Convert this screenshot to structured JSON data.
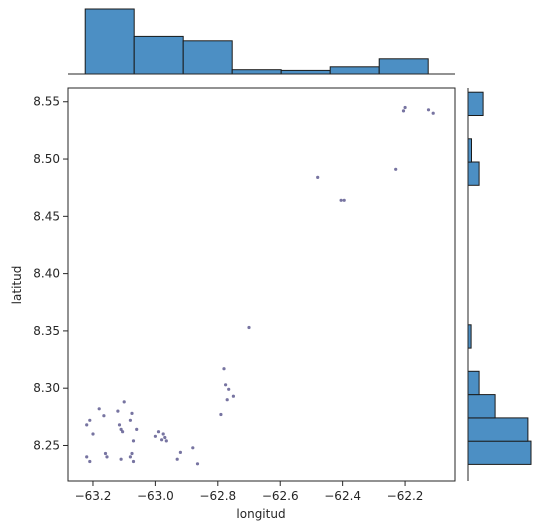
{
  "chart_data": {
    "type": "scatter",
    "title": "",
    "xlabel": "longitud",
    "ylabel": "latitud",
    "xlim": [
      -63.28,
      -62.04
    ],
    "ylim": [
      8.219,
      8.562
    ],
    "xticks": [
      -63.2,
      -63.0,
      -62.8,
      -62.6,
      -62.4,
      -62.2
    ],
    "xtick_labels": [
      "−63.2",
      "−63.0",
      "−62.8",
      "−62.6",
      "−62.4",
      "−62.2"
    ],
    "yticks": [
      8.25,
      8.3,
      8.35,
      8.4,
      8.45,
      8.5,
      8.55
    ],
    "ytick_labels": [
      "8.25",
      "8.30",
      "8.35",
      "8.40",
      "8.45",
      "8.50",
      "8.55"
    ],
    "grid": false,
    "colors": {
      "points": "#55518a",
      "hist_fill": "#4c8fc4",
      "hist_edge": "#1a1a1a"
    },
    "points": [
      [
        -63.22,
        8.24
      ],
      [
        -63.21,
        8.236
      ],
      [
        -63.22,
        8.268
      ],
      [
        -63.21,
        8.272
      ],
      [
        -63.2,
        8.26
      ],
      [
        -63.18,
        8.282
      ],
      [
        -63.165,
        8.276
      ],
      [
        -63.16,
        8.243
      ],
      [
        -63.155,
        8.24
      ],
      [
        -63.12,
        8.28
      ],
      [
        -63.115,
        8.268
      ],
      [
        -63.11,
        8.264
      ],
      [
        -63.105,
        8.262
      ],
      [
        -63.1,
        8.288
      ],
      [
        -63.11,
        8.238
      ],
      [
        -63.08,
        8.272
      ],
      [
        -63.075,
        8.278
      ],
      [
        -63.07,
        8.254
      ],
      [
        -63.075,
        8.243
      ],
      [
        -63.08,
        8.24
      ],
      [
        -63.07,
        8.236
      ],
      [
        -63.06,
        8.264
      ],
      [
        -63.0,
        8.258
      ],
      [
        -62.99,
        8.262
      ],
      [
        -62.98,
        8.255
      ],
      [
        -62.975,
        8.26
      ],
      [
        -62.97,
        8.257
      ],
      [
        -62.965,
        8.254
      ],
      [
        -62.93,
        8.238
      ],
      [
        -62.92,
        8.244
      ],
      [
        -62.88,
        8.248
      ],
      [
        -62.865,
        8.234
      ],
      [
        -62.79,
        8.277
      ],
      [
        -62.78,
        8.317
      ],
      [
        -62.775,
        8.303
      ],
      [
        -62.765,
        8.299
      ],
      [
        -62.77,
        8.29
      ],
      [
        -62.75,
        8.293
      ],
      [
        -62.7,
        8.353
      ],
      [
        -62.48,
        8.484
      ],
      [
        -62.405,
        8.464
      ],
      [
        -62.395,
        8.464
      ],
      [
        -62.23,
        8.491
      ],
      [
        -62.205,
        8.542
      ],
      [
        -62.2,
        8.545
      ],
      [
        -62.125,
        8.543
      ],
      [
        -62.11,
        8.54
      ]
    ],
    "x_hist": {
      "bin_edges": [
        -63.225,
        -63.068,
        -62.911,
        -62.754,
        -62.597,
        -62.44,
        -62.283,
        -62.126
      ],
      "counts": [
        9.0,
        5.2,
        4.6,
        0.6,
        0.5,
        1.0,
        2.1
      ]
    },
    "y_hist": {
      "bin_edges": [
        8.2335,
        8.2538,
        8.2741,
        8.2944,
        8.3147,
        8.335,
        8.3553,
        8.3756,
        8.3959,
        8.4162,
        8.4365,
        8.4568,
        8.4771,
        8.4974,
        8.5177,
        8.538,
        8.5583
      ],
      "counts": [
        14.2,
        13.5,
        6.1,
        2.5,
        0,
        0.7,
        0,
        0,
        0,
        0,
        0,
        0,
        2.5,
        0.8,
        0,
        3.4
      ]
    }
  }
}
